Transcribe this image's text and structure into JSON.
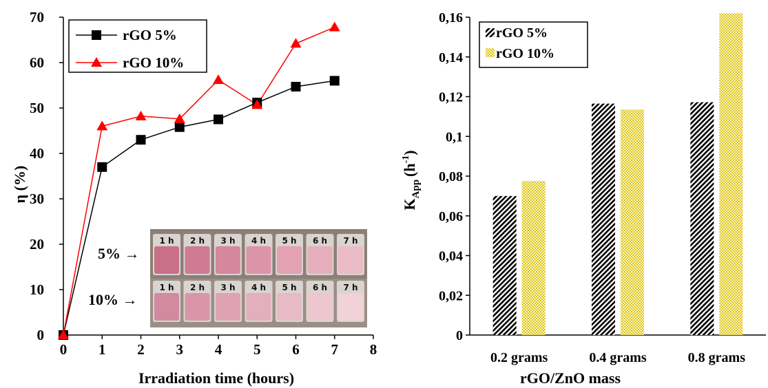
{
  "chart_data": [
    {
      "type": "line",
      "xlabel": "Irradiation time (hours)",
      "ylabel": "η (%)",
      "xlim": [
        0,
        8
      ],
      "ylim": [
        0,
        70
      ],
      "x_ticks": [
        "0",
        "1",
        "2",
        "3",
        "4",
        "5",
        "6",
        "7",
        "8"
      ],
      "y_ticks": [
        "0",
        "10",
        "20",
        "30",
        "40",
        "50",
        "60",
        "70"
      ],
      "legend_position": "top-left",
      "grid": false,
      "series": [
        {
          "name": "rGO 5%",
          "color": "#000000",
          "marker": "square",
          "x": [
            0,
            1,
            2,
            3,
            4,
            5,
            6,
            7
          ],
          "values": [
            0,
            37,
            43,
            45.8,
            47.5,
            51.2,
            54.7,
            56
          ]
        },
        {
          "name": "rGO 10%",
          "color": "#ff0000",
          "marker": "triangle",
          "x": [
            0,
            1,
            2,
            3,
            4,
            5,
            6,
            7
          ],
          "values": [
            0,
            46,
            48.2,
            47.6,
            56.2,
            50.7,
            64.2,
            67.8
          ]
        }
      ],
      "inset": {
        "description": "photo of sample vials",
        "row_labels": [
          "5% →",
          "10% →"
        ],
        "vial_labels": [
          "1 h",
          "2 h",
          "3 h",
          "4 h",
          "5 h",
          "6 h",
          "7 h"
        ]
      }
    },
    {
      "type": "bar",
      "xlabel": "rGO/ZnO mass",
      "ylabel_main": "K",
      "ylabel_sub": "App",
      "ylabel_unit": "(h",
      "ylabel_sup": "-1",
      "ylabel_close": ")",
      "ylim": [
        0,
        0.16
      ],
      "y_ticks": [
        "0",
        "0,02",
        "0,04",
        "0,06",
        "0,08",
        "0,1",
        "0,12",
        "0,14",
        "0,16"
      ],
      "categories": [
        "0.2 grams",
        "0.4 grams",
        "0.8 grams"
      ],
      "legend_position": "top-left",
      "grid": false,
      "series": [
        {
          "name": "rGO 5%",
          "pattern": "black diagonal hatch",
          "values": [
            0.07,
            0.1165,
            0.1172
          ]
        },
        {
          "name": "rGO 10%",
          "pattern": "yellow checker",
          "values": [
            0.0775,
            0.1135,
            0.162
          ]
        }
      ]
    }
  ]
}
